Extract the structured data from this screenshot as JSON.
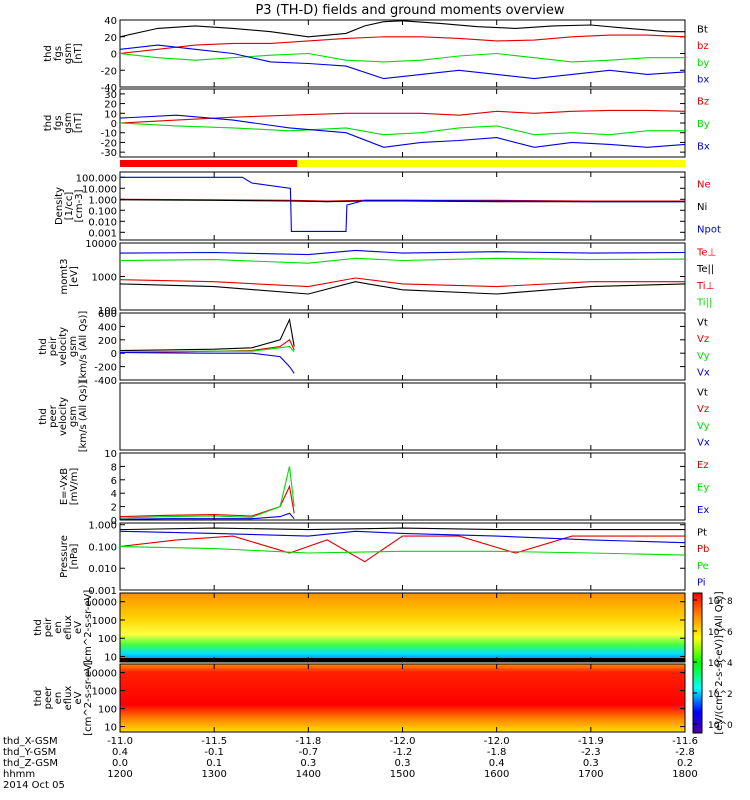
{
  "title": "P3 (TH-D) fields and ground moments overview",
  "colorbar": {
    "label": "[eV/(cm^2-s-sr-eV)] (All Qs)]",
    "tick_labels": [
      "10^8",
      "10^6",
      "10^4",
      "10^2",
      "10^0"
    ]
  },
  "footer": {
    "row_labels": [
      "thd_X-GSM",
      "thd_Y-GSM",
      "thd_Z-GSM",
      "hhmm",
      "2014 Oct 05"
    ],
    "rows": [
      [
        "-11.0",
        "-11.5",
        "-11.8",
        "-12.0",
        "-12.0",
        "-11.9",
        "-11.6"
      ],
      [
        "0.4",
        "-0.1",
        "-0.7",
        "-1.2",
        "-1.8",
        "-2.3",
        "-2.8"
      ],
      [
        "0.0",
        "0.1",
        "0.3",
        "0.3",
        "0.4",
        "0.3",
        "0.2"
      ],
      [
        "1200",
        "1300",
        "1400",
        "1500",
        "1600",
        "1700",
        "1800"
      ]
    ]
  },
  "colors": {
    "black": "#000000",
    "red": "#e00000",
    "green": "#00dd00",
    "blue": "#0000e0",
    "yellow": "#ffff00",
    "mode_red": "#ff0000"
  },
  "chart_data": [
    {
      "type": "line",
      "ylabel": [
        "thd",
        "fgs",
        "gsm",
        "[nT]"
      ],
      "ylim": [
        -40,
        40
      ],
      "yticks": [
        40,
        20,
        0,
        -20,
        -40
      ],
      "legend": [
        {
          "name": "Bt",
          "color": "black"
        },
        {
          "name": "bz",
          "color": "red"
        },
        {
          "name": "by",
          "color": "green"
        },
        {
          "name": "bx",
          "color": "blue"
        }
      ],
      "series": [
        {
          "name": "Bt",
          "x": [
            1200,
            1240,
            1280,
            1320,
            1360,
            1400,
            1440,
            1460,
            1480,
            1500,
            1540,
            1580,
            1620,
            1660,
            1700,
            1740,
            1780,
            1800
          ],
          "values": [
            20,
            30,
            33,
            30,
            26,
            20,
            24,
            33,
            38,
            39,
            36,
            32,
            30,
            33,
            34,
            30,
            26,
            26
          ]
        },
        {
          "name": "bz",
          "x": [
            1200,
            1240,
            1280,
            1320,
            1360,
            1400,
            1440,
            1480,
            1520,
            1560,
            1600,
            1640,
            1680,
            1720,
            1760,
            1800
          ],
          "values": [
            0,
            5,
            10,
            12,
            12,
            15,
            18,
            20,
            20,
            18,
            15,
            16,
            20,
            22,
            22,
            20
          ]
        },
        {
          "name": "by",
          "x": [
            1200,
            1240,
            1280,
            1320,
            1360,
            1400,
            1440,
            1480,
            1520,
            1560,
            1600,
            1640,
            1680,
            1720,
            1760,
            1800
          ],
          "values": [
            0,
            -5,
            -8,
            -5,
            -2,
            0,
            -8,
            -10,
            -8,
            -3,
            0,
            -5,
            -10,
            -8,
            -5,
            -5
          ]
        },
        {
          "name": "bx",
          "x": [
            1200,
            1240,
            1280,
            1320,
            1360,
            1400,
            1440,
            1480,
            1520,
            1560,
            1600,
            1640,
            1680,
            1720,
            1760,
            1800
          ],
          "values": [
            5,
            10,
            5,
            0,
            -10,
            -12,
            -15,
            -30,
            -25,
            -20,
            -25,
            -30,
            -25,
            -20,
            -25,
            -22
          ]
        }
      ]
    },
    {
      "type": "line",
      "ylabel": [
        "thd",
        "fgs",
        "gsm",
        "[nT]"
      ],
      "ylim": [
        -35,
        35
      ],
      "yticks": [
        30,
        20,
        10,
        0,
        -10,
        -20,
        -30
      ],
      "legend": [
        {
          "name": "Bz",
          "color": "red"
        },
        {
          "name": "By",
          "color": "green"
        },
        {
          "name": "Bx",
          "color": "blue"
        }
      ],
      "series": [
        {
          "name": "Bz",
          "x": [
            1200,
            1260,
            1320,
            1380,
            1440,
            1480,
            1520,
            1560,
            1600,
            1640,
            1680,
            1720,
            1760,
            1800
          ],
          "values": [
            0,
            3,
            6,
            8,
            10,
            10,
            10,
            8,
            12,
            10,
            12,
            13,
            13,
            12
          ]
        },
        {
          "name": "By",
          "x": [
            1200,
            1260,
            1320,
            1380,
            1440,
            1480,
            1520,
            1560,
            1600,
            1640,
            1680,
            1720,
            1760,
            1800
          ],
          "values": [
            0,
            -3,
            -5,
            -8,
            -5,
            -12,
            -10,
            -5,
            -3,
            -12,
            -10,
            -12,
            -8,
            -8
          ]
        },
        {
          "name": "Bx",
          "x": [
            1200,
            1260,
            1320,
            1380,
            1440,
            1480,
            1520,
            1560,
            1600,
            1640,
            1680,
            1720,
            1760,
            1800
          ],
          "values": [
            5,
            8,
            3,
            -5,
            -10,
            -25,
            -20,
            -18,
            -15,
            -25,
            -20,
            -22,
            -25,
            -22
          ]
        }
      ]
    },
    {
      "type": "line",
      "ylabel": [
        "Density",
        "[1/cc]",
        "[cm-3]"
      ],
      "yscale": "log",
      "ylim": [
        0.0002,
        300
      ],
      "yticks": [
        "100.000",
        "10.000",
        "1.000",
        "0.100",
        "0.010",
        "0.001"
      ],
      "legend": [
        {
          "name": "Ne",
          "color": "red"
        },
        {
          "name": "Ni",
          "color": "black"
        },
        {
          "name": "Npot",
          "color": "blue"
        }
      ],
      "series": [
        {
          "name": "Ne",
          "x": [
            1200,
            1300,
            1380,
            1420,
            1460,
            1500,
            1600,
            1700,
            1800
          ],
          "values": [
            1.0,
            0.9,
            0.8,
            0.7,
            0.8,
            0.8,
            0.8,
            0.7,
            0.7
          ]
        },
        {
          "name": "Ni",
          "x": [
            1200,
            1300,
            1380,
            1420,
            1460,
            1500,
            1600,
            1700,
            1800
          ],
          "values": [
            0.9,
            0.8,
            0.7,
            0.6,
            0.7,
            0.7,
            0.6,
            0.6,
            0.6
          ]
        },
        {
          "name": "Npot",
          "x": [
            1200,
            1205,
            1206,
            1300,
            1330,
            1340,
            1381,
            1382,
            1440,
            1441,
            1460,
            1500,
            1600,
            1700,
            1800
          ],
          "values": [
            100,
            100,
            100,
            100,
            100,
            30,
            10,
            0.0012,
            0.0012,
            0.3,
            0.8,
            0.8,
            0.7,
            0.6,
            0.6
          ]
        }
      ]
    },
    {
      "type": "line",
      "ylabel": [
        "momt3",
        "[eV]"
      ],
      "yscale": "log",
      "ylim": [
        100,
        10000
      ],
      "yticks": [
        "10000",
        "1000",
        "100"
      ],
      "legend": [
        {
          "name": "Te⊥",
          "color": "red"
        },
        {
          "name": "Te||",
          "color": "black"
        },
        {
          "name": "Ti⊥",
          "color": "red"
        },
        {
          "name": "Ti||",
          "color": "green"
        }
      ],
      "series": [
        {
          "name": "Ti⊥",
          "x": [
            1200,
            1300,
            1400,
            1450,
            1500,
            1600,
            1700,
            1800
          ],
          "values": [
            5000,
            5200,
            4500,
            6000,
            5000,
            5500,
            5000,
            5200
          ]
        },
        {
          "name": "Ti||",
          "x": [
            1200,
            1300,
            1400,
            1450,
            1500,
            1600,
            1700,
            1800
          ],
          "values": [
            3000,
            3200,
            2500,
            3500,
            3000,
            3500,
            3200,
            3300
          ]
        },
        {
          "name": "Te⊥",
          "x": [
            1200,
            1300,
            1400,
            1450,
            1500,
            1600,
            1700,
            1800
          ],
          "values": [
            800,
            700,
            500,
            900,
            600,
            500,
            700,
            700
          ]
        },
        {
          "name": "Te||",
          "x": [
            1200,
            1300,
            1400,
            1450,
            1500,
            1600,
            1700,
            1800
          ],
          "values": [
            600,
            500,
            300,
            700,
            400,
            300,
            500,
            600
          ]
        }
      ]
    },
    {
      "type": "line",
      "ylabel": [
        "thd",
        "peir",
        "velocity",
        "gsm",
        "[km/s (All Qs)]"
      ],
      "ylim": [
        -400,
        600
      ],
      "yticks": [
        600,
        400,
        200,
        0,
        -200,
        -400
      ],
      "legend": [
        {
          "name": "Vt",
          "color": "black"
        },
        {
          "name": "Vz",
          "color": "red"
        },
        {
          "name": "Vy",
          "color": "green"
        },
        {
          "name": "Vx",
          "color": "blue"
        }
      ],
      "series": [
        {
          "name": "Vt",
          "x": [
            1200,
            1250,
            1300,
            1340,
            1370,
            1380,
            1385
          ],
          "values": [
            40,
            50,
            60,
            80,
            200,
            500,
            100
          ]
        },
        {
          "name": "Vz",
          "x": [
            1200,
            1250,
            1300,
            1340,
            1370,
            1380,
            1385
          ],
          "values": [
            10,
            20,
            30,
            40,
            100,
            200,
            50
          ]
        },
        {
          "name": "Vy",
          "x": [
            1200,
            1250,
            1300,
            1340,
            1370,
            1380,
            1385
          ],
          "values": [
            20,
            25,
            30,
            30,
            80,
            100,
            20
          ]
        },
        {
          "name": "Vx",
          "x": [
            1200,
            1250,
            1300,
            1340,
            1370,
            1380,
            1385
          ],
          "values": [
            10,
            5,
            0,
            0,
            -50,
            -200,
            -300
          ]
        }
      ]
    },
    {
      "type": "line",
      "ylabel": [
        "thd",
        "peer",
        "velocity",
        "gsm",
        "[km/s (All Qs)]"
      ],
      "legend": [
        {
          "name": "Vt",
          "color": "black"
        },
        {
          "name": "Vz",
          "color": "red"
        },
        {
          "name": "Vy",
          "color": "green"
        },
        {
          "name": "Vx",
          "color": "blue"
        }
      ],
      "series": []
    },
    {
      "type": "line",
      "ylabel": [
        "E=-VxB",
        "[mV/m]"
      ],
      "ylim": [
        0,
        10
      ],
      "yticks": [
        "10",
        "8",
        "6",
        "4",
        "2",
        "0"
      ],
      "legend": [
        {
          "name": "Ez",
          "color": "red"
        },
        {
          "name": "Ey",
          "color": "green"
        },
        {
          "name": "Ex",
          "color": "blue"
        }
      ],
      "series": [
        {
          "name": "Ez",
          "x": [
            1200,
            1250,
            1300,
            1340,
            1370,
            1380,
            1385
          ],
          "values": [
            0.5,
            0.7,
            0.8,
            0.6,
            2,
            5,
            1
          ]
        },
        {
          "name": "Ey",
          "x": [
            1200,
            1250,
            1300,
            1340,
            1370,
            1380,
            1385
          ],
          "values": [
            0.3,
            0.5,
            0.6,
            0.4,
            2,
            8,
            2
          ]
        },
        {
          "name": "Ex",
          "x": [
            1200,
            1250,
            1300,
            1340,
            1370,
            1380,
            1385
          ],
          "values": [
            0.1,
            0.2,
            0.2,
            0.2,
            0.5,
            1,
            0.2
          ]
        }
      ]
    },
    {
      "type": "line",
      "ylabel": [
        "Pressure",
        "[nPa]"
      ],
      "yscale": "log",
      "ylim": [
        0.001,
        1.2
      ],
      "yticks": [
        "1.000",
        "0.100",
        "0.010",
        "0.001"
      ],
      "legend": [
        {
          "name": "Pt",
          "color": "black"
        },
        {
          "name": "Pb",
          "color": "red"
        },
        {
          "name": "Pe",
          "color": "green"
        },
        {
          "name": "Pi",
          "color": "blue"
        }
      ],
      "series": [
        {
          "name": "Pt",
          "x": [
            1200,
            1300,
            1400,
            1500,
            1600,
            1700,
            1800
          ],
          "values": [
            0.6,
            0.7,
            0.6,
            0.7,
            0.6,
            0.6,
            0.6
          ]
        },
        {
          "name": "Pb",
          "x": [
            1200,
            1260,
            1320,
            1380,
            1420,
            1460,
            1500,
            1560,
            1620,
            1680,
            1740,
            1800
          ],
          "values": [
            0.1,
            0.2,
            0.3,
            0.05,
            0.2,
            0.02,
            0.3,
            0.3,
            0.05,
            0.3,
            0.3,
            0.3
          ]
        },
        {
          "name": "Pe",
          "x": [
            1200,
            1300,
            1400,
            1500,
            1600,
            1700,
            1800
          ],
          "values": [
            0.1,
            0.08,
            0.05,
            0.06,
            0.06,
            0.05,
            0.04
          ]
        },
        {
          "name": "Pi",
          "x": [
            1200,
            1300,
            1400,
            1450,
            1500,
            1600,
            1700,
            1800
          ],
          "values": [
            0.5,
            0.4,
            0.3,
            0.5,
            0.4,
            0.3,
            0.2,
            0.15
          ]
        }
      ]
    },
    {
      "type": "heatmap",
      "ylabel": [
        "thd",
        "peir",
        "en",
        "eflux",
        "eV",
        "[cm^2-s-sr-eV]"
      ],
      "yscale": "log",
      "ylim": [
        5,
        30000
      ],
      "yticks": [
        "10000",
        "1000",
        "100",
        "10"
      ]
    },
    {
      "type": "heatmap",
      "ylabel": [
        "thd",
        "peer",
        "en",
        "eflux",
        "eV",
        "[cm^2-s-sr-eV]"
      ],
      "yscale": "log",
      "ylim": [
        5,
        30000
      ],
      "yticks": [
        "10000",
        "1000",
        "100",
        "10"
      ]
    }
  ]
}
